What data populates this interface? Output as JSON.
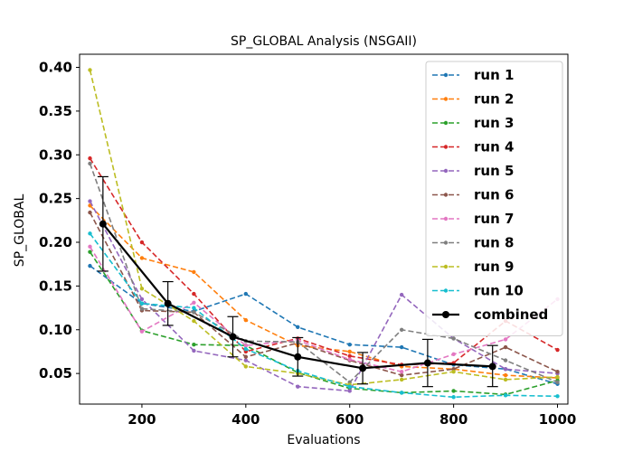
{
  "chart_data": {
    "type": "line",
    "title": "SP_GLOBAL Analysis (NSGAII)",
    "xlabel": "Evaluations",
    "ylabel": "SP_GLOBAL",
    "xlim": [
      80,
      1020
    ],
    "ylim": [
      0.015,
      0.415
    ],
    "xticks": [
      200,
      400,
      600,
      800,
      1000
    ],
    "yticks": [
      0.05,
      0.1,
      0.15,
      0.2,
      0.25,
      0.3,
      0.35,
      0.4
    ],
    "ytick_labels": [
      "0.05",
      "0.10",
      "0.15",
      "0.20",
      "0.25",
      "0.30",
      "0.35",
      "0.40"
    ],
    "grid": false,
    "legend_position": "top-right",
    "series": [
      {
        "name": "run 1",
        "color": "#1f77b4",
        "style": "dashed",
        "x": [
          100,
          200,
          300,
          400,
          500,
          600,
          700,
          800,
          900,
          1000
        ],
        "y": [
          0.173,
          0.13,
          0.121,
          0.141,
          0.103,
          0.083,
          0.08,
          0.06,
          0.055,
          0.038
        ]
      },
      {
        "name": "run 2",
        "color": "#ff7f0e",
        "style": "dashed",
        "x": [
          100,
          200,
          300,
          400,
          500,
          600,
          700,
          800,
          900,
          1000
        ],
        "y": [
          0.242,
          0.182,
          0.166,
          0.111,
          0.082,
          0.075,
          0.058,
          0.055,
          0.048,
          0.045
        ]
      },
      {
        "name": "run 3",
        "color": "#2ca02c",
        "style": "dashed",
        "x": [
          100,
          200,
          300,
          400,
          500,
          600,
          700,
          800,
          900,
          1000
        ],
        "y": [
          0.189,
          0.099,
          0.083,
          0.082,
          0.051,
          0.033,
          0.028,
          0.03,
          0.026,
          0.042
        ]
      },
      {
        "name": "run 4",
        "color": "#d62728",
        "style": "dashed",
        "x": [
          100,
          200,
          300,
          400,
          500,
          600,
          700,
          800,
          900,
          1000
        ],
        "y": [
          0.296,
          0.2,
          0.141,
          0.075,
          0.09,
          0.07,
          0.06,
          0.062,
          0.11,
          0.077
        ]
      },
      {
        "name": "run 5",
        "color": "#9467bd",
        "style": "dashed",
        "x": [
          100,
          200,
          300,
          400,
          500,
          600,
          700,
          800,
          900,
          1000
        ],
        "y": [
          0.247,
          0.135,
          0.076,
          0.065,
          0.035,
          0.03,
          0.14,
          0.09,
          0.055,
          0.05
        ]
      },
      {
        "name": "run 6",
        "color": "#8c564b",
        "style": "dashed",
        "x": [
          100,
          200,
          300,
          400,
          500,
          600,
          700,
          800,
          900,
          1000
        ],
        "y": [
          0.234,
          0.122,
          0.12,
          0.069,
          0.085,
          0.065,
          0.048,
          0.055,
          0.08,
          0.052
        ]
      },
      {
        "name": "run 7",
        "color": "#e377c2",
        "style": "dashed",
        "x": [
          100,
          200,
          300,
          400,
          500,
          600,
          700,
          800,
          900,
          1000
        ],
        "y": [
          0.195,
          0.098,
          0.131,
          0.082,
          0.088,
          0.066,
          0.052,
          0.072,
          0.089,
          0.135
        ]
      },
      {
        "name": "run 8",
        "color": "#7f7f7f",
        "style": "dashed",
        "x": [
          100,
          200,
          300,
          400,
          500,
          600,
          700,
          800,
          900,
          1000
        ],
        "y": [
          0.29,
          0.124,
          0.12,
          0.087,
          0.086,
          0.04,
          0.1,
          0.09,
          0.065,
          0.04
        ]
      },
      {
        "name": "run 9",
        "color": "#bcbd22",
        "style": "dashed",
        "x": [
          100,
          200,
          300,
          400,
          500,
          600,
          700,
          800,
          900,
          1000
        ],
        "y": [
          0.397,
          0.147,
          0.11,
          0.058,
          0.05,
          0.037,
          0.043,
          0.052,
          0.043,
          0.046
        ]
      },
      {
        "name": "run 10",
        "color": "#17becf",
        "style": "dashed",
        "x": [
          100,
          200,
          300,
          400,
          500,
          600,
          700,
          800,
          900,
          1000
        ],
        "y": [
          0.21,
          0.13,
          0.125,
          0.078,
          0.053,
          0.035,
          0.028,
          0.023,
          0.025,
          0.024
        ]
      },
      {
        "name": "combined",
        "color": "#000000",
        "style": "solid",
        "x": [
          125,
          250,
          375,
          500,
          625,
          750,
          875
        ],
        "y": [
          0.221,
          0.13,
          0.092,
          0.069,
          0.056,
          0.062,
          0.058
        ],
        "error_low": [
          0.167,
          0.105,
          0.069,
          0.047,
          0.038,
          0.035,
          0.035
        ],
        "error_high": [
          0.275,
          0.155,
          0.115,
          0.091,
          0.074,
          0.089,
          0.082
        ]
      }
    ]
  }
}
